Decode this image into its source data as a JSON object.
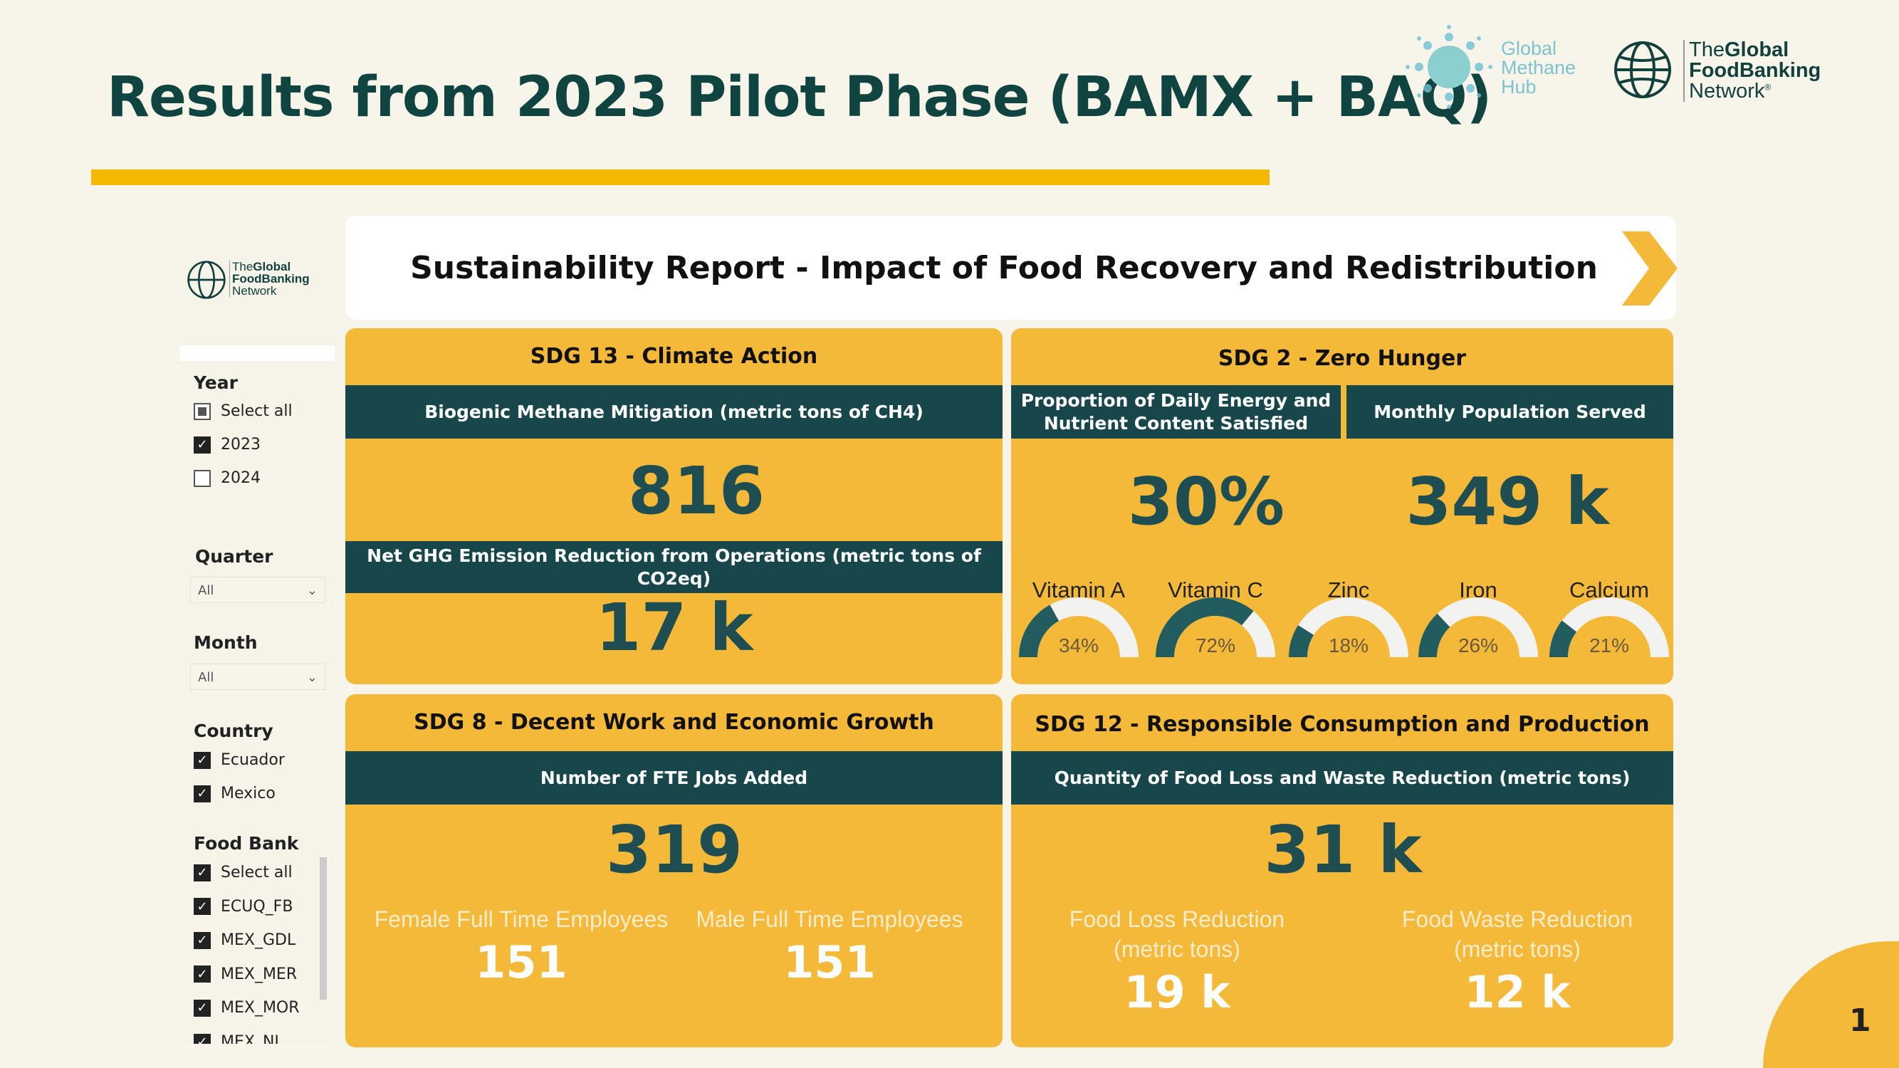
{
  "slide": {
    "title": "Results from 2023 Pilot Phase (BAMX + BAQ)",
    "page_number": "1"
  },
  "logos": {
    "methane_hub": [
      "Global",
      "Methane",
      "Hub"
    ],
    "gfn": {
      "line1_light": "The",
      "line1_bold": "Global",
      "line2": "FoodBanking",
      "line3": "Network",
      "mark": "®"
    }
  },
  "colors": {
    "card": "#f5b93a",
    "dark_bar": "#17474a",
    "value": "#1f4e52",
    "accent": "#f5b800",
    "gauge_fill": "#225c5f",
    "gauge_track": "#f2f2f0"
  },
  "slicers": {
    "year": {
      "label": "Year",
      "items": [
        {
          "label": "Select all",
          "state": "partial"
        },
        {
          "label": "2023",
          "state": "checked"
        },
        {
          "label": "2024",
          "state": "unchecked"
        }
      ]
    },
    "quarter": {
      "label": "Quarter",
      "value": "All"
    },
    "month": {
      "label": "Month",
      "value": "All"
    },
    "country": {
      "label": "Country",
      "items": [
        {
          "label": "Ecuador",
          "state": "checked"
        },
        {
          "label": "Mexico",
          "state": "checked"
        }
      ]
    },
    "food_bank": {
      "label": "Food Bank",
      "items": [
        {
          "label": "Select all",
          "state": "checked"
        },
        {
          "label": "ECUQ_FB",
          "state": "checked"
        },
        {
          "label": "MEX_GDL",
          "state": "checked"
        },
        {
          "label": "MEX_MER",
          "state": "checked"
        },
        {
          "label": "MEX_MOR",
          "state": "checked"
        },
        {
          "label": "MEX_NL",
          "state": "checked"
        }
      ]
    }
  },
  "report": {
    "title": "Sustainability Report - Impact of Food Recovery and Redistribution",
    "sdg13": {
      "title": "SDG 13 - Climate Action",
      "m1_label": "Biogenic Methane Mitigation (metric tons of CH4)",
      "m1_value": "816",
      "m2_label": "Net GHG Emission Reduction from Operations (metric tons of CO2eq)",
      "m2_value": "17 k"
    },
    "sdg2": {
      "title": "SDG 2 - Zero Hunger",
      "m1_label": "Proportion of Daily Energy and Nutrient Content Satisfied",
      "m1_value": "30%",
      "m2_label": "Monthly Population Served",
      "m2_value": "349 k",
      "gauges": [
        {
          "label": "Vitamin A",
          "value": 34,
          "text": "34%"
        },
        {
          "label": "Vitamin C",
          "value": 72,
          "text": "72%"
        },
        {
          "label": "Zinc",
          "value": 18,
          "text": "18%"
        },
        {
          "label": "Iron",
          "value": 26,
          "text": "26%"
        },
        {
          "label": "Calcium",
          "value": 21,
          "text": "21%"
        }
      ]
    },
    "sdg8": {
      "title": "SDG 8 - Decent Work and Economic Growth",
      "m1_label": "Number of FTE Jobs Added",
      "m1_value": "319",
      "female_label": "Female Full Time Employees",
      "female_value": "151",
      "male_label": "Male Full Time Employees",
      "male_value": "151"
    },
    "sdg12": {
      "title": "SDG 12 - Responsible Consumption and Production",
      "m1_label": "Quantity of Food Loss and Waste Reduction (metric tons)",
      "m1_value": "31 k",
      "loss_label": "Food Loss Reduction",
      "loss_unit": "(metric tons)",
      "loss_value": "19 k",
      "waste_label": "Food Waste Reduction",
      "waste_unit": "(metric tons)",
      "waste_value": "12 k"
    }
  }
}
